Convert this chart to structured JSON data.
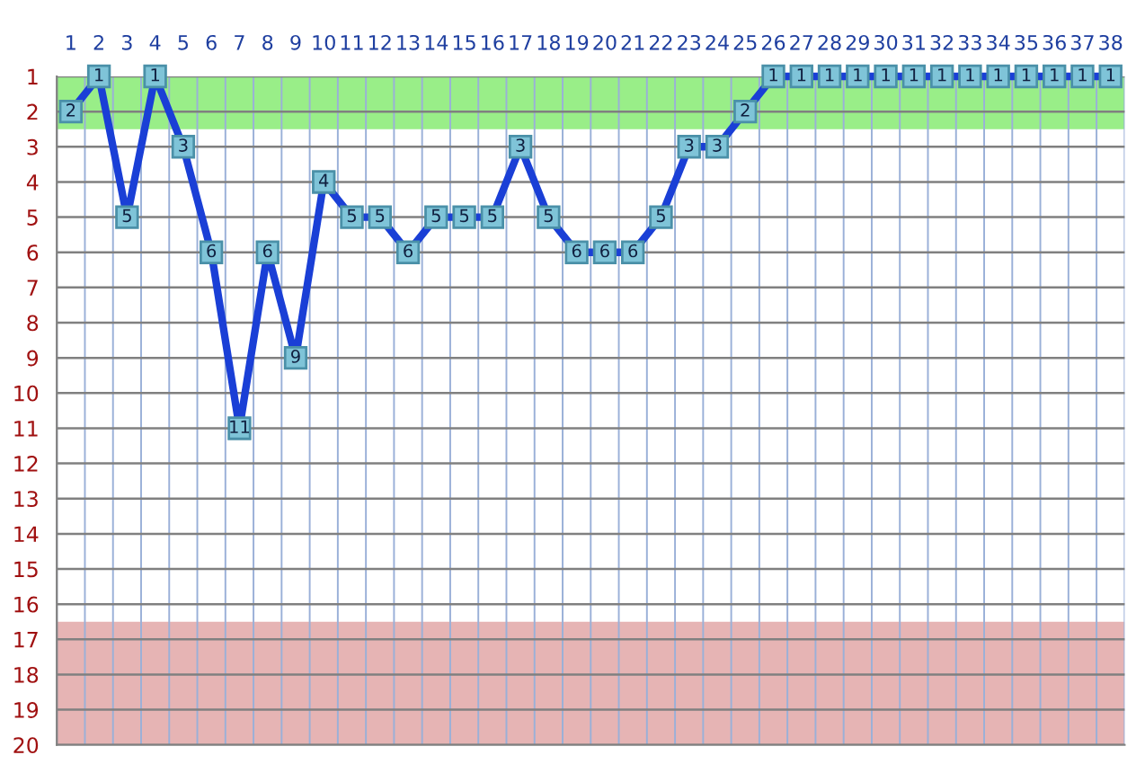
{
  "chart_data": {
    "type": "line",
    "categories": [
      "1",
      "2",
      "3",
      "4",
      "5",
      "6",
      "7",
      "8",
      "9",
      "10",
      "11",
      "12",
      "13",
      "14",
      "15",
      "16",
      "17",
      "18",
      "19",
      "20",
      "21",
      "22",
      "23",
      "24",
      "25",
      "26",
      "27",
      "28",
      "29",
      "30",
      "31",
      "32",
      "33",
      "34",
      "35",
      "36",
      "37",
      "38"
    ],
    "series": [
      {
        "color": "#1a3fd6",
        "values": [
          2,
          1,
          5,
          1,
          3,
          6,
          11,
          6,
          9,
          4,
          5,
          5,
          6,
          5,
          5,
          5,
          3,
          5,
          6,
          6,
          6,
          5,
          3,
          3,
          2,
          1,
          1,
          1,
          1,
          1,
          1,
          1,
          1,
          1,
          1,
          1,
          1,
          1
        ]
      }
    ],
    "ylim": [
      20,
      1
    ],
    "yticks": [
      1,
      2,
      3,
      4,
      5,
      6,
      7,
      8,
      9,
      10,
      11,
      12,
      13,
      14,
      15,
      16,
      17,
      18,
      19,
      20
    ],
    "bands": [
      {
        "axis": "y",
        "from": 1,
        "to": 2.5,
        "color": "#99ee88"
      },
      {
        "axis": "y",
        "from": 16.5,
        "to": 20,
        "color": "#e6b4b4"
      }
    ],
    "grid": true,
    "marker": "square",
    "line_style": "solid",
    "data_labels": true
  }
}
